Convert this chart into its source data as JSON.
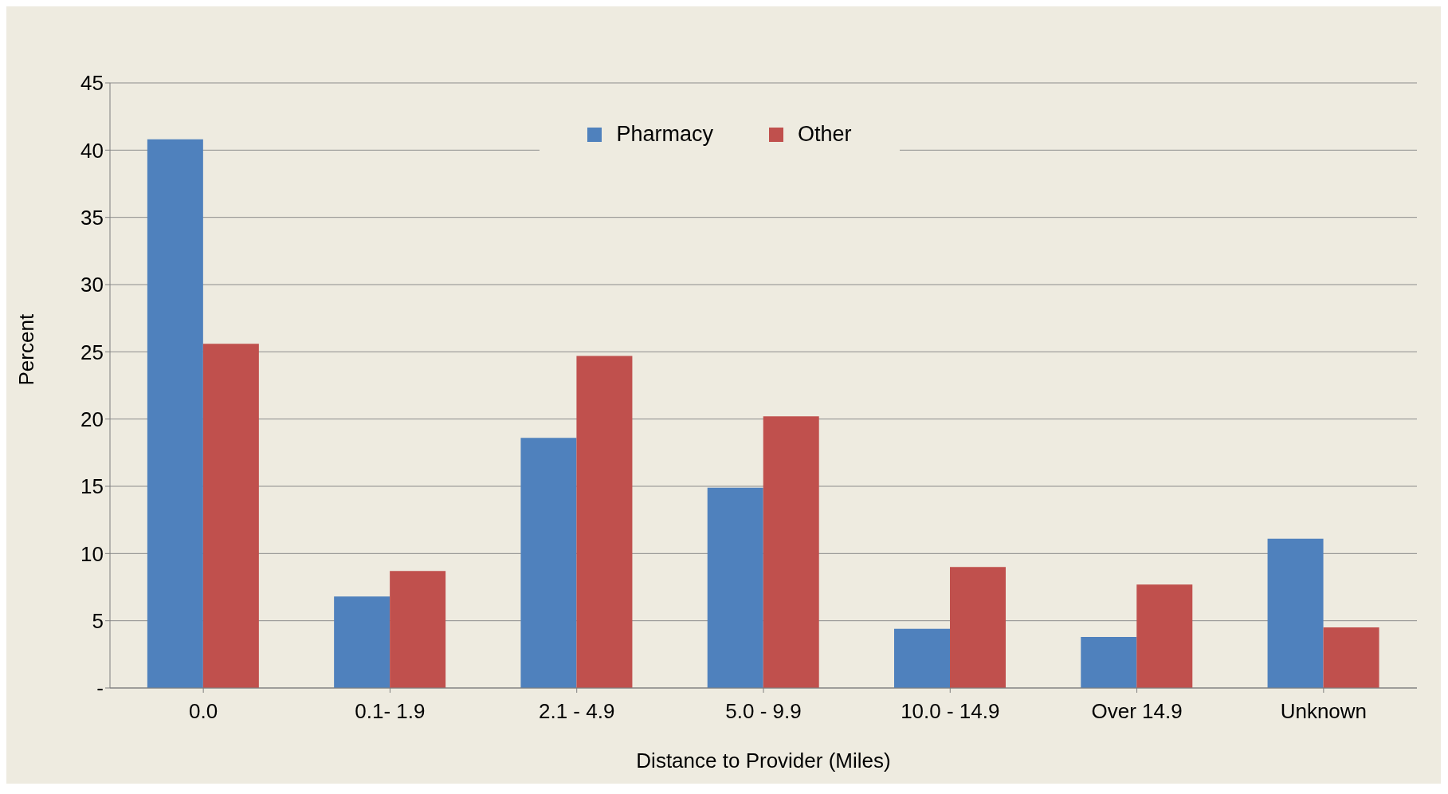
{
  "chart_data": {
    "type": "bar",
    "xlabel": "Distance to Provider (Miles)",
    "ylabel": "Percent",
    "categories": [
      "0.0",
      "0.1- 1.9",
      "2.1 - 4.9",
      "5.0 - 9.9",
      "10.0 - 14.9",
      "Over 14.9",
      "Unknown"
    ],
    "series": [
      {
        "name": "Pharmacy",
        "color": "#4f81bd",
        "values": [
          40.8,
          6.8,
          18.6,
          14.9,
          4.4,
          3.8,
          11.1
        ]
      },
      {
        "name": "Other",
        "color": "#c0504d",
        "values": [
          25.6,
          8.7,
          24.7,
          20.2,
          9.0,
          7.7,
          4.5
        ]
      }
    ],
    "ylim": [
      0,
      45
    ],
    "yticks": [
      {
        "value": 0,
        "label": "-"
      },
      5,
      10,
      15,
      20,
      25,
      30,
      35,
      40,
      45
    ],
    "grid": "y",
    "legend": "top"
  }
}
